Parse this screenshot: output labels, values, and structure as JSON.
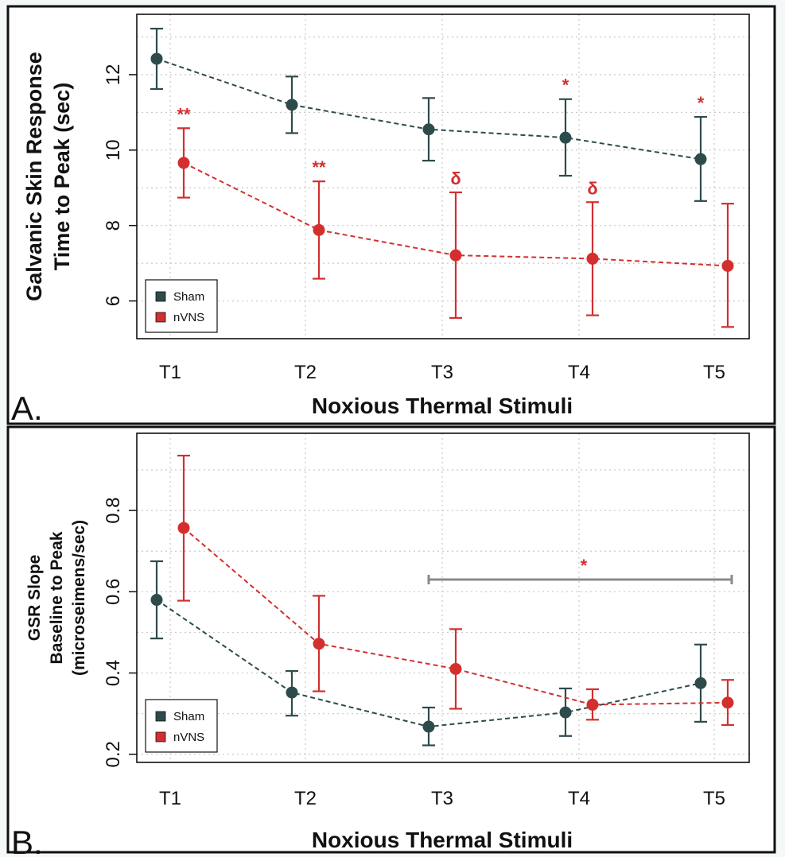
{
  "colors": {
    "sham": "#2d4b4b",
    "nvns": "#d32f2f",
    "bracket": "#8a8a8a",
    "grid": "#c8c8c8"
  },
  "chart_data": [
    {
      "type": "line",
      "panel": "A.",
      "title": "",
      "xlabel": "Noxious Thermal Stimuli",
      "ylabel": [
        "Galvanic Skin Response",
        "Time to Peak (sec)"
      ],
      "categories": [
        "T1",
        "T2",
        "T3",
        "T4",
        "T5"
      ],
      "ylim": [
        5.0,
        13.6
      ],
      "yticks": [
        6,
        8,
        10,
        12
      ],
      "grid": true,
      "legend": {
        "position": "bottom-left",
        "entries": [
          "Sham",
          "nVNS"
        ]
      },
      "series": [
        {
          "name": "Sham",
          "values": [
            12.42,
            11.2,
            10.55,
            10.33,
            9.76
          ],
          "err_low": [
            11.62,
            10.45,
            9.72,
            9.32,
            8.65
          ],
          "err_high": [
            13.22,
            11.95,
            11.38,
            11.35,
            10.88
          ],
          "annotations": [
            "",
            "",
            "",
            "*",
            "*"
          ]
        },
        {
          "name": "nVNS",
          "values": [
            9.66,
            7.88,
            7.21,
            7.12,
            6.93
          ],
          "err_low": [
            8.74,
            6.59,
            5.55,
            5.62,
            5.31
          ],
          "err_high": [
            10.58,
            9.17,
            8.88,
            8.62,
            8.58
          ],
          "annotations": [
            "**",
            "**",
            "δ",
            "δ",
            ""
          ]
        }
      ]
    },
    {
      "type": "line",
      "panel": "B.",
      "title": "",
      "xlabel": "Noxious Thermal Stimuli",
      "ylabel": [
        "GSR Slope",
        "Baseline to Peak",
        "(microseimens/sec)"
      ],
      "categories": [
        "T1",
        "T2",
        "T3",
        "T4",
        "T5"
      ],
      "ylim": [
        0.18,
        0.99
      ],
      "yticks": [
        0.2,
        0.4,
        0.6,
        0.8
      ],
      "grid": true,
      "legend": {
        "position": "bottom-left",
        "entries": [
          "Sham",
          "nVNS"
        ]
      },
      "bracket": {
        "from": "T3",
        "to": "T5",
        "y": 0.63,
        "label": "*"
      },
      "series": [
        {
          "name": "Sham",
          "values": [
            0.58,
            0.352,
            0.268,
            0.303,
            0.375
          ],
          "err_low": [
            0.485,
            0.295,
            0.222,
            0.245,
            0.28
          ],
          "err_high": [
            0.675,
            0.405,
            0.315,
            0.362,
            0.47
          ],
          "annotations": [
            "",
            "",
            "",
            "",
            ""
          ]
        },
        {
          "name": "nVNS",
          "values": [
            0.757,
            0.472,
            0.41,
            0.322,
            0.327
          ],
          "err_low": [
            0.578,
            0.355,
            0.312,
            0.285,
            0.272
          ],
          "err_high": [
            0.935,
            0.59,
            0.508,
            0.36,
            0.383
          ],
          "annotations": [
            "",
            "",
            "",
            "",
            ""
          ]
        }
      ]
    }
  ]
}
